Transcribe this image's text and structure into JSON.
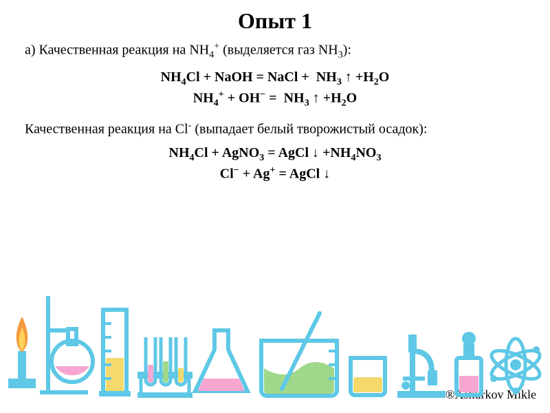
{
  "title": "Опыт 1",
  "sectionA": {
    "prefix": "а) Качественная реакция на NH",
    "sub1": "4",
    "sup1": "+",
    "mid": " (выделяется газ NH",
    "sub2": "3",
    "suffix": "):"
  },
  "sectionB": {
    "prefix": "Качественная реакция на Cl",
    "sup": "-",
    "suffix": " (выпадает белый творожистый осадок):"
  },
  "eq1_html": "NH<sub>4</sub>Cl + NaOH = NaCl +  NH<sub>3</sub> ↑ +H<sub>2</sub>O",
  "eq2_html": "NH<sub>4</sub><sup>+</sup> + OH<sup>−</sup> =  NH<sub>3</sub> ↑ +H<sub>2</sub>O",
  "eq3_html": "NH<sub>4</sub>Cl + AgNO<sub>3</sub> = AgCl ↓ +NH<sub>4</sub>NO<sub>3</sub>",
  "eq4_html": "Cl<sup>−</sup> + Ag<sup>+</sup> = AgCl ↓",
  "credit": "®Ashurkov Mikle",
  "palette": {
    "blue": "#5ec8e6",
    "blue_dark": "#3a8fb7",
    "pink": "#f7a6d1",
    "yellow": "#f5d96b",
    "green": "#9fd88a",
    "flame_orange": "#f59a3e",
    "flame_yellow": "#ffd257",
    "white": "#ffffff"
  }
}
